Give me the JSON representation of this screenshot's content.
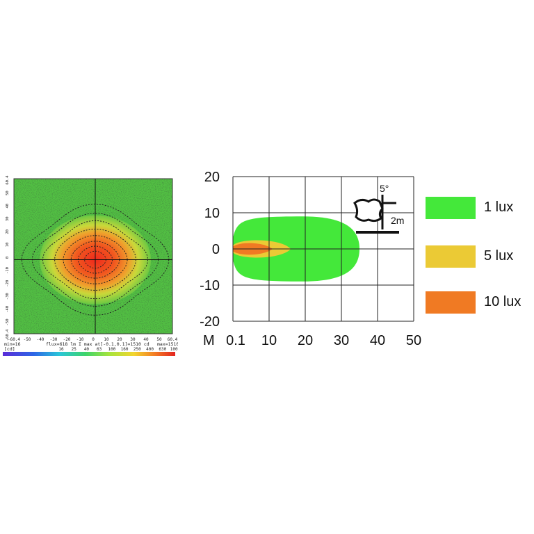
{
  "chart_data": [
    {
      "type": "heatmap",
      "x_ticks": [
        "-60.4",
        "-50",
        "-40",
        "-30",
        "-20",
        "-10",
        "0",
        "10",
        "20",
        "30",
        "40",
        "50",
        "60.4"
      ],
      "y_ticks": [
        "60.4",
        "50",
        "40",
        "30",
        "20",
        "10",
        "0",
        "-10",
        "-20",
        "-30",
        "-40",
        "-50",
        "-60.4"
      ],
      "footer_left": "min=16",
      "footer_mid": "flux=618 lm  I max at[-0.1,0.1]=1510 cd",
      "footer_right": "max=1510",
      "unit_label": "[cd]",
      "colorbar_ticks": [
        "16",
        "25",
        "40",
        "63",
        "100",
        "160",
        "250",
        "400",
        "630",
        "1000"
      ],
      "colors": {
        "background": "#52c043",
        "peak": "#ef3322",
        "grid": "#111111"
      }
    },
    {
      "type": "area",
      "x_label_prefix": "M",
      "x_ticks": [
        "0.1",
        "10",
        "20",
        "30",
        "40",
        "50"
      ],
      "y_ticks": [
        "20",
        "10",
        "0",
        "-10",
        "-20"
      ],
      "xlim": [
        0,
        50
      ],
      "ylim": [
        -20,
        20
      ],
      "series": [
        {
          "name": "1 lux",
          "color": "#44e83a",
          "reach_m": 35,
          "half_width_m": 9
        },
        {
          "name": "5 lux",
          "color": "#ebca35",
          "reach_m": 16,
          "half_width_m": 3
        },
        {
          "name": "10 lux",
          "color": "#f07a23",
          "reach_m": 11,
          "half_width_m": 2
        }
      ],
      "inset": {
        "angle_label": "5°",
        "height_label": "2m"
      }
    }
  ]
}
